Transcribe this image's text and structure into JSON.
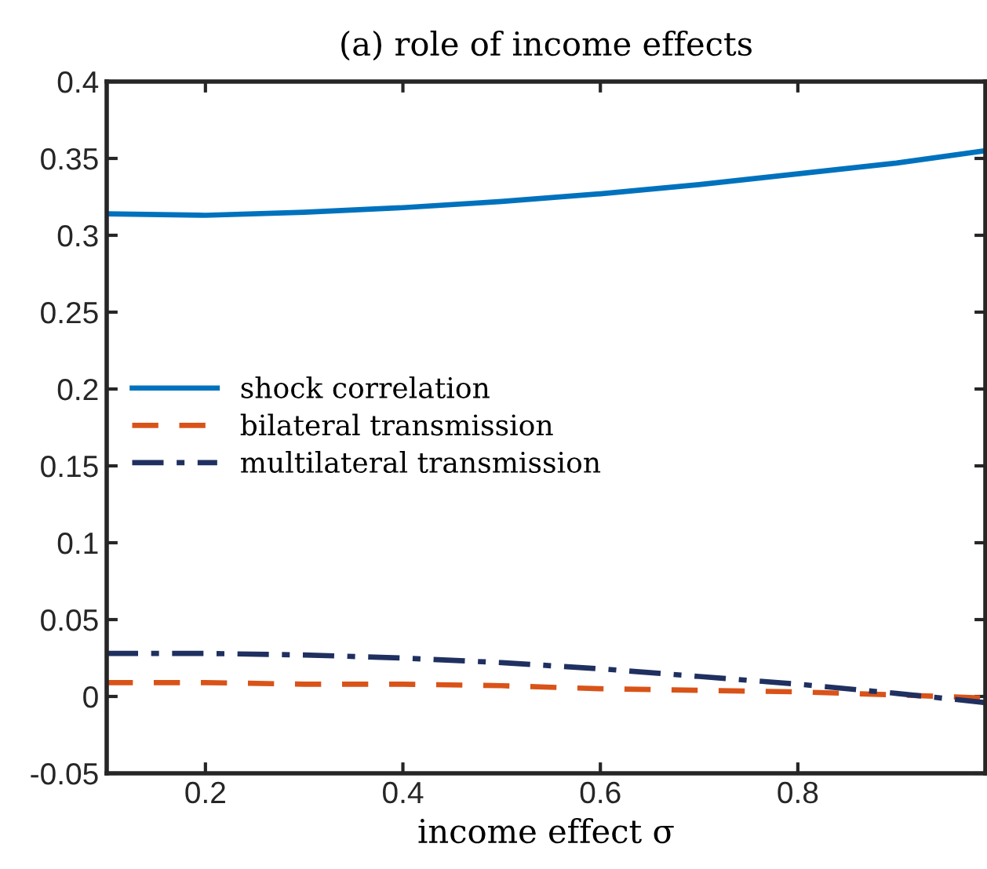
{
  "chart_data": {
    "type": "line",
    "title": "(a) role of income effects",
    "xlabel": "income effect σ",
    "x": [
      0.1,
      0.2,
      0.3,
      0.4,
      0.5,
      0.6,
      0.7,
      0.8,
      0.9,
      0.99
    ],
    "series": [
      {
        "name": "shock correlation",
        "color": "#0072bd",
        "line_style": "solid",
        "values": [
          0.314,
          0.313,
          0.315,
          0.318,
          0.322,
          0.327,
          0.333,
          0.34,
          0.347,
          0.355
        ]
      },
      {
        "name": "bilateral transmission",
        "color": "#d95319",
        "line_style": "dashed",
        "values": [
          0.009,
          0.009,
          0.008,
          0.008,
          0.007,
          0.005,
          0.004,
          0.003,
          0.001,
          -0.001
        ]
      },
      {
        "name": "multilateral transmission",
        "color": "#1f3060",
        "line_style": "dashdot",
        "values": [
          0.028,
          0.028,
          0.027,
          0.025,
          0.022,
          0.018,
          0.013,
          0.008,
          0.002,
          -0.004
        ]
      }
    ],
    "xlim": [
      0.1,
      0.99
    ],
    "xticks": [
      0.2,
      0.4,
      0.6,
      0.8
    ],
    "ylim": [
      -0.05,
      0.4
    ],
    "yticks": [
      -0.05,
      0,
      0.05,
      0.1,
      0.15,
      0.2,
      0.25,
      0.3,
      0.35,
      0.4
    ],
    "grid": false,
    "legend": "center left"
  }
}
